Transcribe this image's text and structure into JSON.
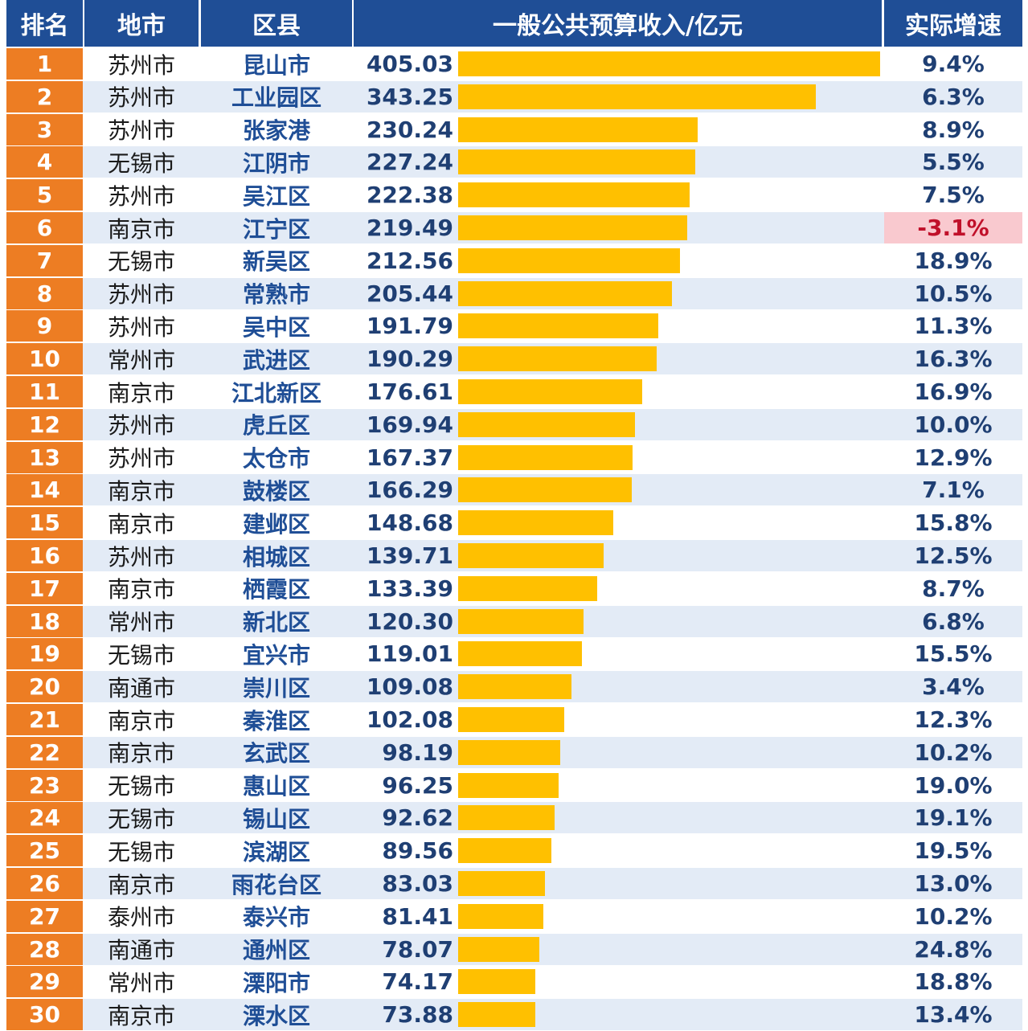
{
  "headers": {
    "rank": "排名",
    "city": "地市",
    "county": "区县",
    "revenue": "一般公共预算收入/亿元",
    "growth": "实际增速"
  },
  "colors": {
    "header_bg": "#1f4e96",
    "rank_bg": "#ed7d23",
    "bar": "#ffc000",
    "negative_bg": "#f9c9cf",
    "negative_text": "#c0102a"
  },
  "chart_data": {
    "type": "bar",
    "orientation": "horizontal",
    "xlim": [
      0,
      405.03
    ],
    "categories": [
      "昆山市",
      "工业园区",
      "张家港",
      "江阴市",
      "吴江区",
      "江宁区",
      "新吴区",
      "常熟市",
      "吴中区",
      "武进区",
      "江北新区",
      "虎丘区",
      "太仓市",
      "鼓楼区",
      "建邺区",
      "相城区",
      "栖霞区",
      "新北区",
      "宜兴市",
      "崇川区",
      "秦淮区",
      "玄武区",
      "惠山区",
      "锡山区",
      "滨湖区",
      "雨花台区",
      "泰兴市",
      "通州区",
      "溧阳市",
      "溧水区"
    ],
    "values": [
      405.03,
      343.25,
      230.24,
      227.24,
      222.38,
      219.49,
      212.56,
      205.44,
      191.79,
      190.29,
      176.61,
      169.94,
      167.37,
      166.29,
      148.68,
      139.71,
      133.39,
      120.3,
      119.01,
      109.08,
      102.08,
      98.19,
      96.25,
      92.62,
      89.56,
      83.03,
      81.41,
      78.07,
      74.17,
      73.88
    ],
    "rows": [
      {
        "rank": "1",
        "city": "苏州市",
        "county": "昆山市",
        "value": "405.03",
        "growth": "9.4%"
      },
      {
        "rank": "2",
        "city": "苏州市",
        "county": "工业园区",
        "value": "343.25",
        "growth": "6.3%"
      },
      {
        "rank": "3",
        "city": "苏州市",
        "county": "张家港",
        "value": "230.24",
        "growth": "8.9%"
      },
      {
        "rank": "4",
        "city": "无锡市",
        "county": "江阴市",
        "value": "227.24",
        "growth": "5.5%"
      },
      {
        "rank": "5",
        "city": "苏州市",
        "county": "吴江区",
        "value": "222.38",
        "growth": "7.5%"
      },
      {
        "rank": "6",
        "city": "南京市",
        "county": "江宁区",
        "value": "219.49",
        "growth": "-3.1%"
      },
      {
        "rank": "7",
        "city": "无锡市",
        "county": "新吴区",
        "value": "212.56",
        "growth": "18.9%"
      },
      {
        "rank": "8",
        "city": "苏州市",
        "county": "常熟市",
        "value": "205.44",
        "growth": "10.5%"
      },
      {
        "rank": "9",
        "city": "苏州市",
        "county": "吴中区",
        "value": "191.79",
        "growth": "11.3%"
      },
      {
        "rank": "10",
        "city": "常州市",
        "county": "武进区",
        "value": "190.29",
        "growth": "16.3%"
      },
      {
        "rank": "11",
        "city": "南京市",
        "county": "江北新区",
        "value": "176.61",
        "growth": "16.9%"
      },
      {
        "rank": "12",
        "city": "苏州市",
        "county": "虎丘区",
        "value": "169.94",
        "growth": "10.0%"
      },
      {
        "rank": "13",
        "city": "苏州市",
        "county": "太仓市",
        "value": "167.37",
        "growth": "12.9%"
      },
      {
        "rank": "14",
        "city": "南京市",
        "county": "鼓楼区",
        "value": "166.29",
        "growth": "7.1%"
      },
      {
        "rank": "15",
        "city": "南京市",
        "county": "建邺区",
        "value": "148.68",
        "growth": "15.8%"
      },
      {
        "rank": "16",
        "city": "苏州市",
        "county": "相城区",
        "value": "139.71",
        "growth": "12.5%"
      },
      {
        "rank": "17",
        "city": "南京市",
        "county": "栖霞区",
        "value": "133.39",
        "growth": "8.7%"
      },
      {
        "rank": "18",
        "city": "常州市",
        "county": "新北区",
        "value": "120.30",
        "growth": "6.8%"
      },
      {
        "rank": "19",
        "city": "无锡市",
        "county": "宜兴市",
        "value": "119.01",
        "growth": "15.5%"
      },
      {
        "rank": "20",
        "city": "南通市",
        "county": "崇川区",
        "value": "109.08",
        "growth": "3.4%"
      },
      {
        "rank": "21",
        "city": "南京市",
        "county": "秦淮区",
        "value": "102.08",
        "growth": "12.3%"
      },
      {
        "rank": "22",
        "city": "南京市",
        "county": "玄武区",
        "value": "98.19",
        "growth": "10.2%"
      },
      {
        "rank": "23",
        "city": "无锡市",
        "county": "惠山区",
        "value": "96.25",
        "growth": "19.0%"
      },
      {
        "rank": "24",
        "city": "无锡市",
        "county": "锡山区",
        "value": "92.62",
        "growth": "19.1%"
      },
      {
        "rank": "25",
        "city": "无锡市",
        "county": "滨湖区",
        "value": "89.56",
        "growth": "19.5%"
      },
      {
        "rank": "26",
        "city": "南京市",
        "county": "雨花台区",
        "value": "83.03",
        "growth": "13.0%"
      },
      {
        "rank": "27",
        "city": "泰州市",
        "county": "泰兴市",
        "value": "81.41",
        "growth": "10.2%"
      },
      {
        "rank": "28",
        "city": "南通市",
        "county": "通州区",
        "value": "78.07",
        "growth": "24.8%"
      },
      {
        "rank": "29",
        "city": "常州市",
        "county": "溧阳市",
        "value": "74.17",
        "growth": "18.8%"
      },
      {
        "rank": "30",
        "city": "南京市",
        "county": "溧水区",
        "value": "73.88",
        "growth": "13.4%"
      }
    ]
  }
}
